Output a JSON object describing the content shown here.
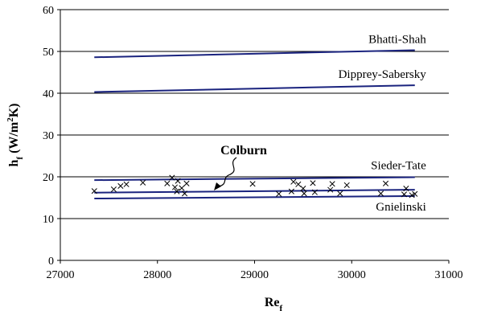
{
  "chart_data": {
    "type": "line",
    "title": "",
    "xlabel": "Re",
    "xlabel_sub": "f",
    "ylabel": "h",
    "ylabel_sub": "f",
    "ylabel_unit_pre": " (W/m",
    "ylabel_sup": "2",
    "ylabel_unit_post": "K)",
    "xlim": [
      27000,
      31000
    ],
    "ylim": [
      0,
      60
    ],
    "x_ticks": [
      27000,
      28000,
      29000,
      30000,
      31000
    ],
    "y_ticks": [
      0,
      10,
      20,
      30,
      40,
      50,
      60
    ],
    "grid": "horizontal",
    "series_color": "#1a237e",
    "series": [
      {
        "name": "Bhatti-Shah",
        "x": [
          27350,
          30650
        ],
        "y": [
          48.6,
          50.3
        ]
      },
      {
        "name": "Dipprey-Sabersky",
        "x": [
          27350,
          30650
        ],
        "y": [
          40.3,
          41.9
        ]
      },
      {
        "name": "Sieder-Tate",
        "x": [
          27350,
          30650
        ],
        "y": [
          19.2,
          19.9
        ]
      },
      {
        "name": "Colburn",
        "x": [
          27350,
          30650
        ],
        "y": [
          16.2,
          16.9
        ]
      },
      {
        "name": "Gnielinski",
        "x": [
          27350,
          30650
        ],
        "y": [
          14.8,
          15.4
        ]
      }
    ],
    "annotation": {
      "text": "Colburn",
      "target_series": "Colburn"
    },
    "experimental": {
      "marker": "x",
      "x": [
        27350,
        27550,
        27620,
        27680,
        27850,
        28100,
        28150,
        28180,
        28200,
        28210,
        28250,
        28280,
        28300,
        28980,
        29250,
        29380,
        29400,
        29450,
        29500,
        29510,
        29600,
        29620,
        29780,
        29800,
        29880,
        29950,
        30300,
        30350,
        30540,
        30560,
        30620,
        30650
      ],
      "y": [
        16.6,
        17.0,
        17.8,
        18.2,
        18.6,
        18.4,
        19.8,
        17.5,
        16.5,
        19.0,
        17.3,
        16.0,
        18.4,
        18.3,
        15.9,
        16.5,
        18.8,
        18.2,
        17.2,
        16.0,
        18.5,
        16.3,
        16.9,
        18.3,
        16.0,
        18.0,
        16.0,
        18.4,
        15.8,
        17.2,
        15.6,
        15.9
      ]
    }
  }
}
